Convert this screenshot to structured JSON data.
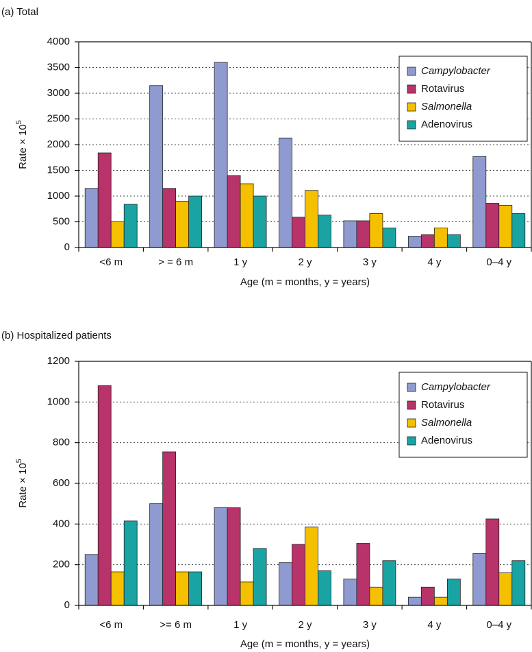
{
  "chart_data": [
    {
      "type": "bar",
      "title": "(a) Total",
      "x_label": "Age  (m = months, y = years)",
      "y_label": "Rate  × 10",
      "y_label_exponent": "5",
      "categories": [
        "<6 m",
        "> = 6 m",
        "1 y",
        "2 y",
        "3 y",
        "4 y",
        "0–4 y"
      ],
      "series": [
        {
          "name": "Campylobacter",
          "font_style": "italic",
          "color": "#8f9bd0",
          "values": [
            1150,
            3150,
            3600,
            2130,
            520,
            220,
            1770
          ]
        },
        {
          "name": "Rotavirus",
          "font_style": "normal",
          "color": "#b8336a",
          "values": [
            1840,
            1150,
            1400,
            590,
            520,
            250,
            860
          ]
        },
        {
          "name": "Salmonella",
          "font_style": "italic",
          "color": "#f5c000",
          "values": [
            500,
            900,
            1240,
            1110,
            660,
            380,
            820
          ]
        },
        {
          "name": "Adenovirus",
          "font_style": "normal",
          "color": "#1aa3a3",
          "values": [
            840,
            1000,
            1000,
            630,
            380,
            250,
            660
          ]
        }
      ],
      "ylim": [
        0,
        4000
      ],
      "yticks": [
        0,
        500,
        1000,
        1500,
        2000,
        2500,
        3000,
        3500,
        4000
      ],
      "grid": true,
      "legend": "upper right"
    },
    {
      "type": "bar",
      "title": "(b) Hospitalized patients",
      "x_label": "Age (m = months, y = years)",
      "y_label": "Rate × 10",
      "y_label_exponent": "5",
      "categories": [
        "<6 m",
        ">= 6 m",
        "1 y",
        "2 y",
        "3 y",
        "4 y",
        "0–4 y"
      ],
      "series": [
        {
          "name": "Campylobacter",
          "font_style": "italic",
          "color": "#8f9bd0",
          "values": [
            250,
            500,
            480,
            210,
            130,
            40,
            255
          ]
        },
        {
          "name": "Rotavirus",
          "font_style": "normal",
          "color": "#b8336a",
          "values": [
            1080,
            755,
            480,
            300,
            305,
            90,
            425
          ]
        },
        {
          "name": "Salmonella",
          "font_style": "italic",
          "color": "#f5c000",
          "values": [
            165,
            165,
            115,
            385,
            90,
            40,
            160
          ]
        },
        {
          "name": "Adenovirus",
          "font_style": "normal",
          "color": "#1aa3a3",
          "values": [
            415,
            165,
            280,
            170,
            220,
            130,
            220
          ]
        }
      ],
      "ylim": [
        0,
        1200
      ],
      "yticks": [
        0,
        200,
        400,
        600,
        800,
        1000,
        1200
      ],
      "grid": true,
      "legend": "upper right"
    }
  ]
}
